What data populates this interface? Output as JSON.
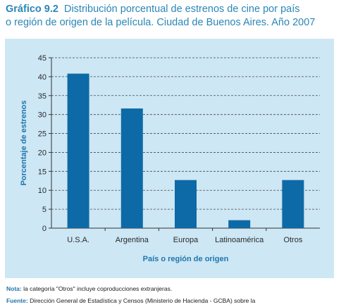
{
  "header": {
    "lead": "Gráfico 9.2",
    "line1": "Distribución porcentual de estrenos de cine por país",
    "line2": "o región de origen de la película. Ciudad de Buenos Aires. Año 2007"
  },
  "colors": {
    "bar": "#0d6aa6",
    "frame": "#cde7f4",
    "accent": "#2a86b8"
  },
  "chart_data": {
    "type": "bar",
    "categories": [
      "U.S.A.",
      "Argentina",
      "Europa",
      "Latinoamérica",
      "Otros"
    ],
    "values": [
      40.8,
      31.6,
      12.7,
      2.1,
      12.7
    ],
    "xlabel": "País o región de origen",
    "ylabel": "Porcentaje de estrenos",
    "ylim": [
      0,
      45
    ],
    "yticks": [
      "0",
      "5",
      "10",
      "15",
      "20",
      "25",
      "30",
      "35",
      "40",
      "45"
    ],
    "grid": "horizontal dashed"
  },
  "notes": {
    "nota_key": "Nota:",
    "nota_text": "la categoría \"Otros\" incluye coproducciones extranjeras.",
    "fuente_key": "Fuente:",
    "fuente_text": "Dirección General de Estadística y Censos (Ministerio de Hacienda - GCBA) sobre la"
  }
}
